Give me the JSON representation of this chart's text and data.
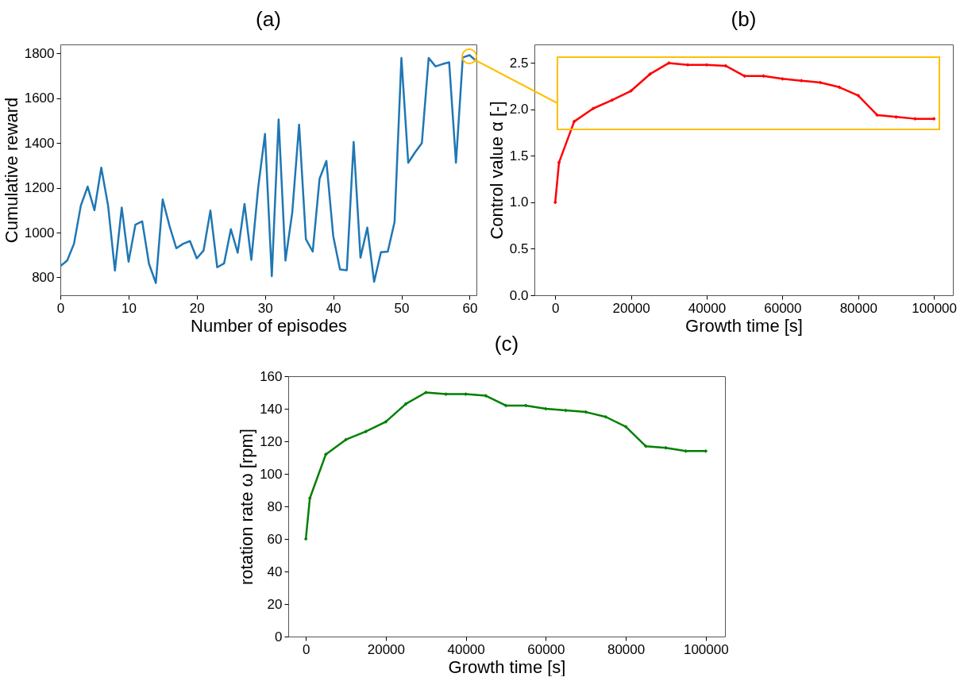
{
  "chart_data": [
    {
      "type": "line",
      "title": "(a)",
      "xlabel": "Number of episodes",
      "ylabel": "Cumulative reward",
      "x": [
        0,
        1,
        2,
        3,
        4,
        5,
        6,
        7,
        8,
        9,
        10,
        11,
        12,
        13,
        14,
        15,
        16,
        17,
        18,
        19,
        20,
        21,
        22,
        23,
        24,
        25,
        26,
        27,
        28,
        29,
        30,
        31,
        32,
        33,
        34,
        35,
        36,
        37,
        38,
        39,
        40,
        41,
        42,
        43,
        44,
        45,
        46,
        47,
        48,
        49,
        50,
        51,
        52,
        53,
        54,
        55,
        56,
        57,
        58,
        59,
        60,
        61
      ],
      "series": [
        {
          "color": "#1f77b4",
          "values": [
            850,
            875,
            950,
            1120,
            1205,
            1100,
            1290,
            1120,
            830,
            1112,
            870,
            1035,
            1050,
            860,
            775,
            1148,
            1030,
            930,
            950,
            962,
            885,
            920,
            1098,
            845,
            862,
            1015,
            910,
            1128,
            878,
            1200,
            1440,
            805,
            1505,
            875,
            1090,
            1482,
            970,
            915,
            1240,
            1320,
            985,
            835,
            832,
            1405,
            888,
            1022,
            780,
            912,
            915,
            1048,
            1780,
            1312,
            1358,
            1400,
            1780,
            1742,
            1752,
            1760,
            1312,
            1782,
            1792,
            1765
          ]
        }
      ],
      "xlim": [
        0,
        61
      ],
      "xticks": [
        0,
        10,
        20,
        30,
        40,
        50,
        60
      ],
      "ylim": [
        720,
        1840
      ],
      "yticks": [
        800,
        1000,
        1200,
        1400,
        1600,
        1800
      ],
      "grid": false,
      "marker": "none"
    },
    {
      "type": "line",
      "title": "(b)",
      "xlabel": "Growth time [s]",
      "ylabel": "Control value α [-]",
      "x": [
        0,
        1000,
        5000,
        10000,
        15000,
        20000,
        25000,
        30000,
        35000,
        40000,
        45000,
        50000,
        55000,
        60000,
        65000,
        70000,
        75000,
        80000,
        85000,
        90000,
        95000,
        100000
      ],
      "series": [
        {
          "color": "#ff0000",
          "values": [
            1.0,
            1.43,
            1.87,
            2.01,
            2.1,
            2.2,
            2.38,
            2.5,
            2.48,
            2.48,
            2.47,
            2.36,
            2.36,
            2.33,
            2.31,
            2.29,
            2.24,
            2.15,
            1.94,
            1.92,
            1.9,
            1.9
          ]
        }
      ],
      "xlim": [
        -5500,
        105000
      ],
      "xticks": [
        0,
        20000,
        40000,
        60000,
        80000,
        100000
      ],
      "ylim": [
        0,
        2.7
      ],
      "yticks": [
        {
          "value": 0,
          "label": "0.0"
        },
        0.5,
        {
          "value": 1,
          "label": "1.0"
        },
        1.5,
        {
          "value": 2,
          "label": "2.0"
        },
        2.5
      ],
      "grid": false,
      "marker": "diamond"
    },
    {
      "type": "line",
      "title": "(c)",
      "xlabel": "Growth time [s]",
      "ylabel": "rotation rate ω [rpm]",
      "x": [
        0,
        1000,
        5000,
        10000,
        15000,
        20000,
        25000,
        30000,
        35000,
        40000,
        45000,
        50000,
        55000,
        60000,
        65000,
        70000,
        75000,
        80000,
        85000,
        90000,
        95000,
        100000
      ],
      "series": [
        {
          "color": "#008000",
          "values": [
            60,
            85,
            112,
            121,
            126,
            132,
            143,
            150,
            149,
            149,
            148,
            142,
            142,
            140,
            139,
            138,
            135,
            129,
            117,
            116,
            114,
            114
          ]
        }
      ],
      "xlim": [
        -4400,
        104800
      ],
      "xticks": [
        0,
        20000,
        40000,
        60000,
        80000,
        100000
      ],
      "ylim": [
        0,
        160
      ],
      "yticks": [
        0,
        20,
        40,
        60,
        80,
        100,
        120,
        140,
        160
      ],
      "grid": false,
      "marker": "diamond"
    }
  ]
}
